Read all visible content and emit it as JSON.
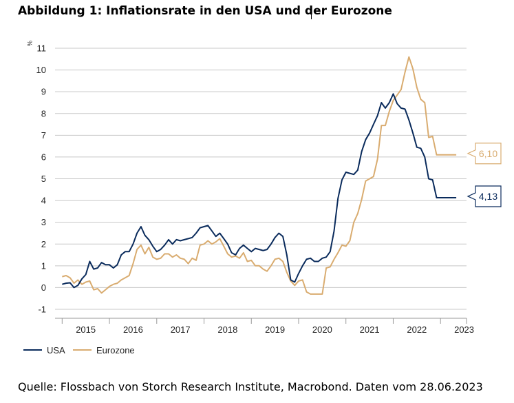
{
  "title": "Abbildung 1: Inflationsrate in den USA und der Eurozone",
  "source": "Quelle: Flossbach von Storch Research Institute, Macrobond. Daten vom 28.06.2023",
  "chart_data": {
    "type": "line",
    "ylabel": "%",
    "xlabel": "",
    "ylim": [
      -1,
      11
    ],
    "yticks": [
      -1,
      0,
      1,
      2,
      3,
      4,
      5,
      6,
      7,
      8,
      9,
      10,
      11
    ],
    "xlim": [
      2014.85,
      2023.55
    ],
    "xticks": [
      "2015",
      "2016",
      "2017",
      "2018",
      "2019",
      "2020",
      "2021",
      "2022",
      "2023"
    ],
    "grid": true,
    "legend_position": "bottom-left",
    "series": [
      {
        "name": "USA",
        "color": "#0a2b5c",
        "end_label": "4,13",
        "x": [
          2015.0,
          2015.083,
          2015.167,
          2015.25,
          2015.333,
          2015.417,
          2015.5,
          2015.583,
          2015.667,
          2015.75,
          2015.833,
          2015.917,
          2016.0,
          2016.083,
          2016.167,
          2016.25,
          2016.333,
          2016.417,
          2016.5,
          2016.583,
          2016.667,
          2016.75,
          2016.833,
          2016.917,
          2017.0,
          2017.083,
          2017.167,
          2017.25,
          2017.333,
          2017.417,
          2017.5,
          2017.583,
          2017.667,
          2017.75,
          2017.833,
          2017.917,
          2018.0,
          2018.083,
          2018.167,
          2018.25,
          2018.333,
          2018.417,
          2018.5,
          2018.583,
          2018.667,
          2018.75,
          2018.833,
          2018.917,
          2019.0,
          2019.083,
          2019.167,
          2019.25,
          2019.333,
          2019.417,
          2019.5,
          2019.583,
          2019.667,
          2019.75,
          2019.833,
          2019.917,
          2020.0,
          2020.083,
          2020.167,
          2020.25,
          2020.333,
          2020.417,
          2020.5,
          2020.583,
          2020.667,
          2020.75,
          2020.833,
          2020.917,
          2021.0,
          2021.083,
          2021.167,
          2021.25,
          2021.333,
          2021.417,
          2021.5,
          2021.583,
          2021.667,
          2021.75,
          2021.833,
          2021.917,
          2022.0,
          2022.083,
          2022.167,
          2022.25,
          2022.333,
          2022.417,
          2022.5,
          2022.583,
          2022.667,
          2022.75,
          2022.833,
          2022.917,
          2023.0,
          2023.083,
          2023.167,
          2023.25,
          2023.333
        ],
        "y": [
          0.15,
          0.2,
          0.22,
          0.0,
          0.1,
          0.4,
          0.6,
          1.2,
          0.85,
          0.9,
          1.15,
          1.05,
          1.05,
          0.9,
          1.05,
          1.5,
          1.65,
          1.65,
          2.0,
          2.5,
          2.8,
          2.4,
          2.2,
          1.9,
          1.65,
          1.75,
          1.95,
          2.2,
          2.0,
          2.2,
          2.15,
          2.2,
          2.25,
          2.3,
          2.5,
          2.75,
          2.8,
          2.85,
          2.6,
          2.35,
          2.5,
          2.25,
          2.0,
          1.6,
          1.5,
          1.8,
          1.95,
          1.8,
          1.65,
          1.8,
          1.75,
          1.7,
          1.75,
          2.0,
          2.3,
          2.5,
          2.35,
          1.5,
          0.35,
          0.25,
          0.65,
          1.0,
          1.3,
          1.35,
          1.2,
          1.2,
          1.35,
          1.4,
          1.65,
          2.6,
          4.1,
          4.95,
          5.3,
          5.25,
          5.2,
          5.4,
          6.25,
          6.8,
          7.1,
          7.5,
          7.9,
          8.5,
          8.25,
          8.5,
          8.9,
          8.45,
          8.25,
          8.2,
          7.7,
          7.1,
          6.45,
          6.4,
          6.0,
          5.0,
          4.95,
          4.13,
          4.13,
          4.13,
          4.13,
          4.13,
          4.13
        ]
      },
      {
        "name": "Eurozone",
        "color": "#d9ac70",
        "end_label": "6,10",
        "x": [
          2015.0,
          2015.083,
          2015.167,
          2015.25,
          2015.333,
          2015.417,
          2015.5,
          2015.583,
          2015.667,
          2015.75,
          2015.833,
          2015.917,
          2016.0,
          2016.083,
          2016.167,
          2016.25,
          2016.333,
          2016.417,
          2016.5,
          2016.583,
          2016.667,
          2016.75,
          2016.833,
          2016.917,
          2017.0,
          2017.083,
          2017.167,
          2017.25,
          2017.333,
          2017.417,
          2017.5,
          2017.583,
          2017.667,
          2017.75,
          2017.833,
          2017.917,
          2018.0,
          2018.083,
          2018.167,
          2018.25,
          2018.333,
          2018.417,
          2018.5,
          2018.583,
          2018.667,
          2018.75,
          2018.833,
          2018.917,
          2019.0,
          2019.083,
          2019.167,
          2019.25,
          2019.333,
          2019.417,
          2019.5,
          2019.583,
          2019.667,
          2019.75,
          2019.833,
          2019.917,
          2020.0,
          2020.083,
          2020.167,
          2020.25,
          2020.333,
          2020.417,
          2020.5,
          2020.583,
          2020.667,
          2020.75,
          2020.833,
          2020.917,
          2021.0,
          2021.083,
          2021.167,
          2021.25,
          2021.333,
          2021.417,
          2021.5,
          2021.583,
          2021.667,
          2021.75,
          2021.833,
          2021.917,
          2022.0,
          2022.083,
          2022.167,
          2022.25,
          2022.333,
          2022.417,
          2022.5,
          2022.583,
          2022.667,
          2022.75,
          2022.833,
          2022.917,
          2023.0,
          2023.083,
          2023.167,
          2023.25,
          2023.333
        ],
        "y": [
          0.5,
          0.55,
          0.45,
          0.2,
          0.35,
          0.15,
          0.25,
          0.3,
          -0.1,
          -0.05,
          -0.25,
          -0.1,
          0.05,
          0.15,
          0.2,
          0.35,
          0.45,
          0.55,
          1.1,
          1.75,
          1.95,
          1.55,
          1.85,
          1.4,
          1.3,
          1.35,
          1.55,
          1.55,
          1.4,
          1.5,
          1.35,
          1.3,
          1.1,
          1.35,
          1.25,
          1.95,
          2.0,
          2.15,
          2.0,
          2.1,
          2.25,
          1.9,
          1.55,
          1.4,
          1.45,
          1.35,
          1.6,
          1.2,
          1.25,
          1.0,
          1.0,
          0.85,
          0.75,
          1.0,
          1.3,
          1.35,
          1.2,
          0.7,
          0.3,
          0.1,
          0.3,
          0.35,
          -0.2,
          -0.3,
          -0.3,
          -0.3,
          -0.3,
          0.9,
          0.95,
          1.3,
          1.6,
          1.95,
          1.9,
          2.15,
          3.0,
          3.4,
          4.05,
          4.9,
          5.0,
          5.1,
          5.9,
          7.45,
          7.45,
          8.1,
          8.6,
          8.85,
          9.1,
          9.9,
          10.6,
          10.05,
          9.2,
          8.65,
          8.5,
          6.9,
          6.95,
          6.1,
          6.1,
          6.1,
          6.1,
          6.1,
          6.1
        ]
      }
    ]
  }
}
